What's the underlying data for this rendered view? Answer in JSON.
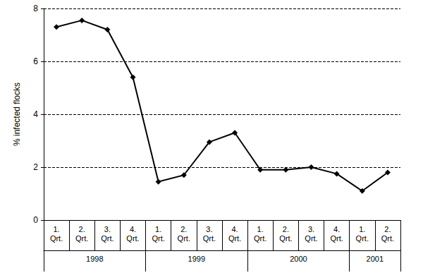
{
  "chart_data": {
    "type": "line",
    "y_label": "% infected flocks",
    "categories": [
      "1. Qrt.",
      "2. Qrt.",
      "3. Qrt.",
      "4. Qrt.",
      "1. Qrt.",
      "2. Qrt.",
      "3. Qrt.",
      "4. Qrt.",
      "1. Qrt.",
      "2. Qrt.",
      "3. Qrt.",
      "4. Qrt.",
      "1. Qrt.",
      "2. Qrt."
    ],
    "category_groups": [
      "1998",
      "1998",
      "1998",
      "1998",
      "1999",
      "1999",
      "1999",
      "1999",
      "2000",
      "2000",
      "2000",
      "2000",
      "2001",
      "2001"
    ],
    "values": [
      7.3,
      7.55,
      7.2,
      5.4,
      1.45,
      1.7,
      2.95,
      3.3,
      1.9,
      1.9,
      2.0,
      1.75,
      1.1,
      1.8
    ],
    "color": "#000000",
    "marker": "diamond",
    "line_style": "solid",
    "ylim": [
      0,
      8
    ],
    "yticks": [
      0,
      2,
      4,
      6,
      8
    ],
    "grid": true
  }
}
